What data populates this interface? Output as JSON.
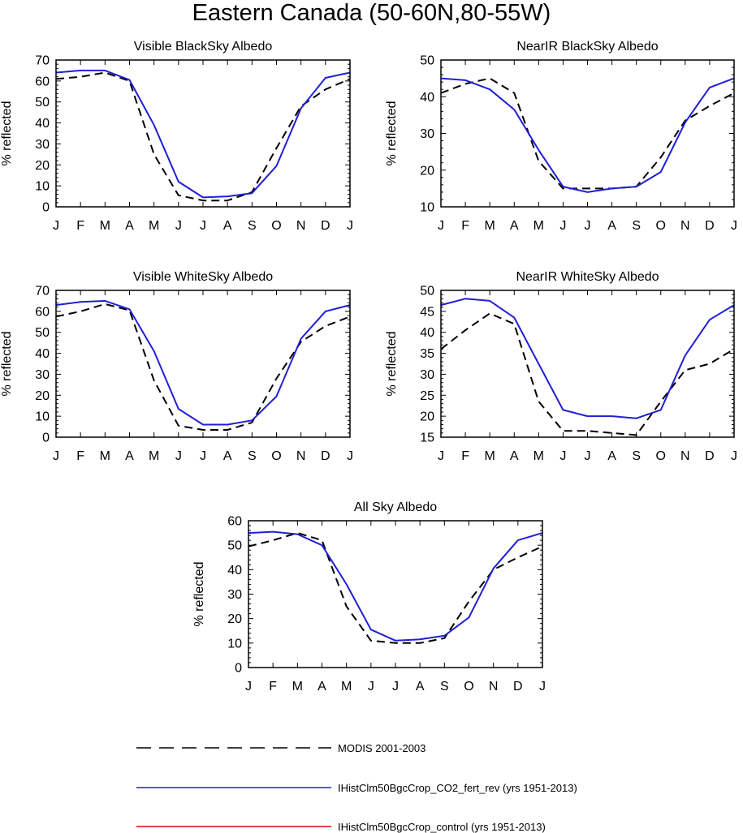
{
  "title": "Eastern Canada (50-60N,80-55W)",
  "colors": {
    "modis": "#000000",
    "fert": "#1f1fd6",
    "control": "#e00000"
  },
  "legend": {
    "placement": "bottom",
    "items": [
      {
        "label": "MODIS 2001-2003",
        "style": "dashed",
        "color": "#000000"
      },
      {
        "label": "IHistClm50BgcCrop_CO2_fert_rev (yrs 1951-2013)",
        "style": "solid",
        "color": "#1f1fd6"
      },
      {
        "label": "IHistClm50BgcCrop_control (yrs 1951-2013)",
        "style": "solid",
        "color": "#e00000"
      }
    ]
  },
  "chart_data": [
    {
      "type": "line",
      "title": "Visible BlackSky Albedo",
      "ylabel": "% reflected",
      "x": [
        "J",
        "F",
        "M",
        "A",
        "M",
        "J",
        "J",
        "A",
        "S",
        "O",
        "N",
        "D",
        "J"
      ],
      "ylim": [
        0,
        70
      ],
      "yticks": [
        0,
        10,
        20,
        30,
        40,
        50,
        60,
        70
      ],
      "grid": false,
      "series": [
        {
          "name": "MODIS 2001-2003",
          "values": [
            61,
            62,
            64,
            60,
            25,
            5.5,
            3,
            3,
            7,
            28,
            48,
            56,
            61
          ]
        },
        {
          "name": "IHistClm50BgcCrop_CO2_fert_rev (yrs 1951-2013)",
          "values": [
            64,
            65,
            65,
            60.5,
            39,
            12,
            4.5,
            5,
            6.5,
            19.5,
            47,
            61.5,
            64
          ]
        }
      ]
    },
    {
      "type": "line",
      "title": "NearIR BlackSky Albedo",
      "ylabel": "% reflected",
      "x": [
        "J",
        "F",
        "M",
        "A",
        "M",
        "J",
        "J",
        "A",
        "S",
        "O",
        "N",
        "D",
        "J"
      ],
      "ylim": [
        10,
        50
      ],
      "yticks": [
        10,
        20,
        30,
        40,
        50
      ],
      "grid": false,
      "series": [
        {
          "name": "MODIS 2001-2003",
          "values": [
            41,
            43.5,
            45,
            41,
            22.5,
            15,
            15,
            15,
            15.5,
            23.5,
            33.5,
            37.5,
            41
          ]
        },
        {
          "name": "IHistClm50BgcCrop_CO2_fert_rev (yrs 1951-2013)",
          "values": [
            45,
            44.5,
            42,
            36.5,
            25.5,
            15.5,
            14,
            15,
            15.5,
            19.5,
            33,
            42.5,
            45
          ]
        }
      ]
    },
    {
      "type": "line",
      "title": "Visible WhiteSky Albedo",
      "ylabel": "% reflected",
      "x": [
        "J",
        "F",
        "M",
        "A",
        "M",
        "J",
        "J",
        "A",
        "S",
        "O",
        "N",
        "D",
        "J"
      ],
      "ylim": [
        0,
        70
      ],
      "yticks": [
        0,
        10,
        20,
        30,
        40,
        50,
        60,
        70
      ],
      "grid": false,
      "series": [
        {
          "name": "MODIS 2001-2003",
          "values": [
            57.5,
            60,
            63.5,
            60.5,
            27,
            5.5,
            3.5,
            3.5,
            7,
            28,
            45.5,
            53,
            57.5
          ]
        },
        {
          "name": "IHistClm50BgcCrop_CO2_fert_rev (yrs 1951-2013)",
          "values": [
            63,
            64.5,
            65,
            61,
            41,
            13.5,
            6,
            6,
            8,
            19.5,
            47,
            60,
            63
          ]
        }
      ]
    },
    {
      "type": "line",
      "title": "NearIR WhiteSky Albedo",
      "ylabel": "% reflected",
      "x": [
        "J",
        "F",
        "M",
        "A",
        "M",
        "J",
        "J",
        "A",
        "S",
        "O",
        "N",
        "D",
        "J"
      ],
      "ylim": [
        15,
        50
      ],
      "yticks": [
        15,
        20,
        25,
        30,
        35,
        40,
        45,
        50
      ],
      "grid": false,
      "series": [
        {
          "name": "MODIS 2001-2003",
          "values": [
            36,
            40.5,
            44.5,
            42,
            23.5,
            16.5,
            16.5,
            16,
            15.5,
            23.5,
            31,
            32.5,
            36
          ]
        },
        {
          "name": "IHistClm50BgcCrop_CO2_fert_rev (yrs 1951-2013)",
          "values": [
            46.5,
            48,
            47.5,
            43.5,
            32.5,
            21.5,
            20,
            20,
            19.5,
            21.5,
            34.5,
            43,
            46.5
          ]
        }
      ]
    },
    {
      "type": "line",
      "title": "All Sky Albedo",
      "ylabel": "% reflected",
      "x": [
        "J",
        "F",
        "M",
        "A",
        "M",
        "J",
        "J",
        "A",
        "S",
        "O",
        "N",
        "D",
        "J"
      ],
      "ylim": [
        0,
        60
      ],
      "yticks": [
        0,
        10,
        20,
        30,
        40,
        50,
        60
      ],
      "grid": false,
      "series": [
        {
          "name": "MODIS 2001-2003",
          "values": [
            49.5,
            52,
            55,
            52,
            25,
            11,
            10,
            10,
            12,
            27,
            40,
            45,
            49.5
          ]
        },
        {
          "name": "IHistClm50BgcCrop_CO2_fert_rev (yrs 1951-2013)",
          "values": [
            55,
            55.5,
            54.5,
            50,
            34,
            15.5,
            11,
            11.5,
            13,
            20.5,
            40.5,
            52,
            55
          ]
        }
      ]
    }
  ]
}
